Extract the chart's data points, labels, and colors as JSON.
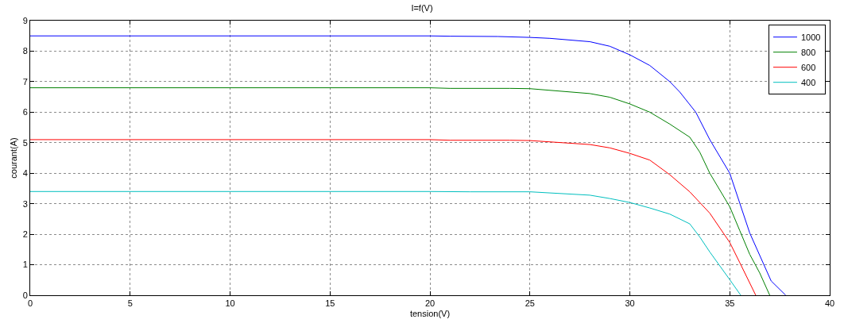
{
  "chart_data": {
    "type": "line",
    "title": "I=f(V)",
    "xlabel": "tension(V)",
    "ylabel": "courant(A)",
    "xlim": [
      0,
      40
    ],
    "xticks": [
      0,
      5,
      10,
      15,
      20,
      25,
      30,
      35,
      40
    ],
    "ylim": [
      0,
      9
    ],
    "yticks": [
      0,
      1,
      2,
      3,
      4,
      5,
      6,
      7,
      8,
      9
    ],
    "grid": true,
    "legend": "top right",
    "marker": "none",
    "line_style": "solid",
    "series": [
      {
        "name": "1000",
        "color": "#0000ff",
        "x": [
          0,
          20,
          21,
          23.4,
          25,
          26,
          28,
          29,
          30,
          31,
          32,
          32.5,
          33.3,
          34,
          35,
          36,
          37.07,
          37.8
        ],
        "values": [
          8.5,
          8.5,
          8.49,
          8.48,
          8.45,
          8.42,
          8.31,
          8.16,
          7.88,
          7.53,
          7.0,
          6.66,
          6.0,
          5.1,
          4.0,
          2.04,
          0.47,
          0
        ]
      },
      {
        "name": "800",
        "color": "#008000",
        "x": [
          0,
          20,
          21,
          24,
          25,
          28,
          29,
          30,
          31,
          32,
          33,
          33.5,
          34,
          35,
          35.5,
          36,
          36.5,
          37
        ],
        "values": [
          6.8,
          6.8,
          6.78,
          6.78,
          6.77,
          6.61,
          6.49,
          6.27,
          6.0,
          5.61,
          5.18,
          4.69,
          4.0,
          2.9,
          2.12,
          1.34,
          0.73,
          0
        ]
      },
      {
        "name": "600",
        "color": "#ff0000",
        "x": [
          0,
          20,
          21,
          24,
          25,
          28,
          29,
          30,
          31,
          32,
          33,
          34,
          35,
          35.5,
          36.3
        ],
        "values": [
          5.1,
          5.1,
          5.08,
          5.08,
          5.07,
          4.94,
          4.83,
          4.65,
          4.43,
          3.95,
          3.39,
          2.69,
          1.73,
          1.07,
          0
        ]
      },
      {
        "name": "400",
        "color": "#00bfbf",
        "x": [
          0,
          20,
          22,
          25,
          28,
          29,
          30,
          31,
          32,
          33,
          33.5,
          34,
          35,
          35.55
        ],
        "values": [
          3.4,
          3.4,
          3.39,
          3.39,
          3.28,
          3.17,
          3.04,
          2.86,
          2.66,
          2.34,
          1.91,
          1.42,
          0.51,
          0
        ]
      }
    ]
  }
}
